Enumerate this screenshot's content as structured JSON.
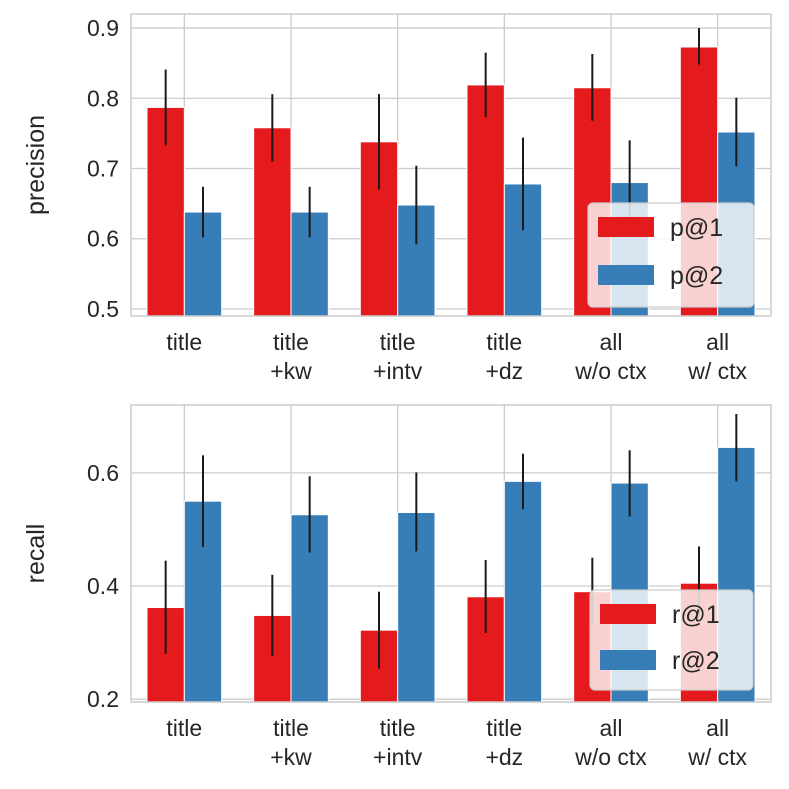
{
  "chart_data": [
    {
      "type": "bar",
      "ylabel": "precision",
      "ylim": [
        0.49,
        0.92
      ],
      "yticks": [
        "0.5",
        "0.6",
        "0.7",
        "0.8",
        "0.9"
      ],
      "ytick_values": [
        0.5,
        0.6,
        0.7,
        0.8,
        0.9
      ],
      "categories": [
        [
          "title"
        ],
        [
          "title",
          "+kw"
        ],
        [
          "title",
          "+intv"
        ],
        [
          "title",
          "+dz"
        ],
        [
          "all",
          "w/o ctx"
        ],
        [
          "all",
          "w/ ctx"
        ]
      ],
      "legend_position": "lower-right",
      "series": [
        {
          "name": "p@1",
          "color": "#e41a1c",
          "values": [
            0.787,
            0.758,
            0.738,
            0.819,
            0.815,
            0.873
          ],
          "err_low": [
            0.733,
            0.71,
            0.67,
            0.773,
            0.768,
            0.848
          ],
          "err_high": [
            0.841,
            0.806,
            0.806,
            0.865,
            0.863,
            0.9
          ]
        },
        {
          "name": "p@2",
          "color": "#377eb8",
          "values": [
            0.638,
            0.638,
            0.648,
            0.678,
            0.68,
            0.752
          ],
          "err_low": [
            0.602,
            0.602,
            0.592,
            0.612,
            0.62,
            0.703
          ],
          "err_high": [
            0.674,
            0.674,
            0.704,
            0.744,
            0.74,
            0.801
          ]
        }
      ]
    },
    {
      "type": "bar",
      "ylabel": "recall",
      "ylim": [
        0.195,
        0.72
      ],
      "yticks": [
        "0.2",
        "0.4",
        "0.6"
      ],
      "ytick_values": [
        0.2,
        0.4,
        0.6
      ],
      "categories": [
        [
          "title"
        ],
        [
          "title",
          "+kw"
        ],
        [
          "title",
          "+intv"
        ],
        [
          "title",
          "+dz"
        ],
        [
          "all",
          "w/o ctx"
        ],
        [
          "all",
          "w/ ctx"
        ]
      ],
      "legend_position": "lower-right",
      "series": [
        {
          "name": "r@1",
          "color": "#e41a1c",
          "values": [
            0.362,
            0.348,
            0.322,
            0.381,
            0.39,
            0.405
          ],
          "err_low": [
            0.28,
            0.276,
            0.254,
            0.317,
            0.331,
            0.345
          ],
          "err_high": [
            0.445,
            0.42,
            0.39,
            0.446,
            0.45,
            0.47
          ]
        },
        {
          "name": "r@2",
          "color": "#377eb8",
          "values": [
            0.55,
            0.526,
            0.53,
            0.585,
            0.582,
            0.645
          ],
          "err_low": [
            0.469,
            0.459,
            0.461,
            0.536,
            0.523,
            0.585
          ],
          "err_high": [
            0.631,
            0.594,
            0.601,
            0.634,
            0.64,
            0.704
          ]
        }
      ]
    }
  ]
}
